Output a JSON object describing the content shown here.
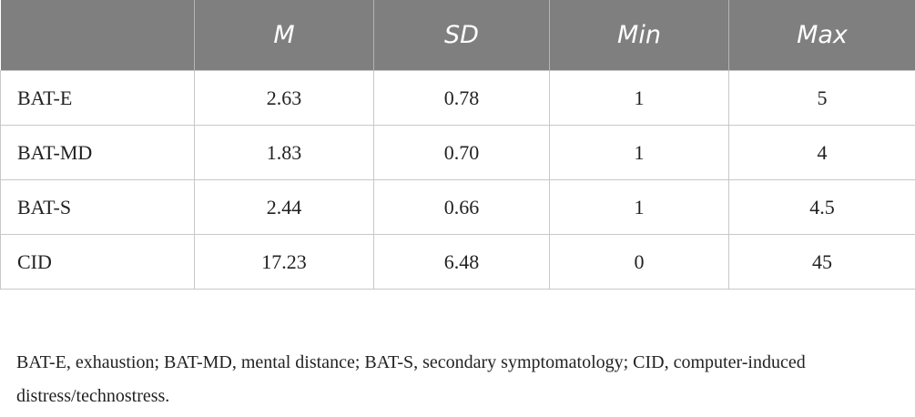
{
  "table": {
    "header": [
      "M",
      "SD",
      "Min",
      "Max"
    ],
    "rows": [
      [
        "BAT-E",
        "2.63",
        "0.78",
        "1",
        "5"
      ],
      [
        "BAT-MD",
        "1.83",
        "0.70",
        "1",
        "4"
      ],
      [
        "BAT-S",
        "2.44",
        "0.66",
        "1",
        "4.5"
      ],
      [
        "CID",
        "17.23",
        "6.48",
        "0",
        "45"
      ]
    ]
  },
  "footnote": "BAT-E, exhaustion; BAT-MD, mental distance; BAT-S, secondary symptomatology; CID, computer-induced distress/technostress."
}
